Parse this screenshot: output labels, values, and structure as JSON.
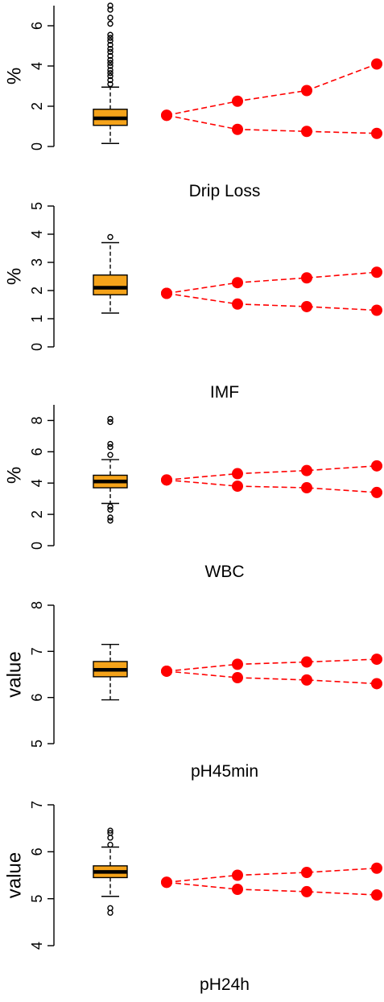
{
  "chart_data": [
    {
      "type": "box+line",
      "title": "Drip Loss",
      "ylabel": "%",
      "ylim": [
        0,
        7
      ],
      "yticks": [
        0,
        2,
        4,
        6
      ],
      "box": {
        "min": 0.15,
        "q1": 1.05,
        "median": 1.4,
        "q3": 1.85,
        "max": 2.95,
        "outliers": [
          3.1,
          3.3,
          3.5,
          3.65,
          3.8,
          4.0,
          4.15,
          4.3,
          4.5,
          4.7,
          4.85,
          5.05,
          5.25,
          5.4,
          5.55,
          6.1,
          6.4,
          6.8,
          7.0
        ]
      },
      "lines": [
        {
          "x": [
            1,
            2,
            3,
            4
          ],
          "y": [
            1.55,
            2.25,
            2.78,
            4.1
          ]
        },
        {
          "x": [
            1,
            2,
            3,
            4
          ],
          "y": [
            1.55,
            0.85,
            0.75,
            0.65
          ]
        }
      ]
    },
    {
      "type": "box+line",
      "title": "IMF",
      "ylabel": "%",
      "ylim": [
        0,
        5
      ],
      "yticks": [
        0,
        1,
        2,
        3,
        4,
        5
      ],
      "box": {
        "min": 1.2,
        "q1": 1.85,
        "median": 2.1,
        "q3": 2.55,
        "max": 3.7,
        "outliers": [
          3.9
        ]
      },
      "lines": [
        {
          "x": [
            1,
            2,
            3,
            4
          ],
          "y": [
            1.9,
            2.28,
            2.45,
            2.65
          ]
        },
        {
          "x": [
            1,
            2,
            3,
            4
          ],
          "y": [
            1.9,
            1.52,
            1.43,
            1.3
          ]
        }
      ]
    },
    {
      "type": "box+line",
      "title": "WBC",
      "ylabel": "%",
      "ylim": [
        0,
        9
      ],
      "yticks": [
        0,
        2,
        4,
        6,
        8
      ],
      "box": {
        "min": 2.7,
        "q1": 3.7,
        "median": 4.1,
        "q3": 4.5,
        "max": 5.5,
        "outliers": [
          1.6,
          1.8,
          2.3,
          2.5,
          5.8,
          6.3,
          6.5,
          7.9,
          8.1
        ]
      },
      "lines": [
        {
          "x": [
            1,
            2,
            3,
            4
          ],
          "y": [
            4.2,
            4.6,
            4.8,
            5.1
          ]
        },
        {
          "x": [
            1,
            2,
            3,
            4
          ],
          "y": [
            4.2,
            3.8,
            3.7,
            3.4
          ]
        }
      ]
    },
    {
      "type": "box+line",
      "title": "pH45min",
      "ylabel": "value",
      "ylim": [
        5,
        8
      ],
      "yticks": [
        5,
        6,
        7,
        8
      ],
      "box": {
        "min": 5.95,
        "q1": 6.45,
        "median": 6.6,
        "q3": 6.78,
        "max": 7.15,
        "outliers": []
      },
      "lines": [
        {
          "x": [
            1,
            2,
            3,
            4
          ],
          "y": [
            6.57,
            6.72,
            6.77,
            6.83
          ]
        },
        {
          "x": [
            1,
            2,
            3,
            4
          ],
          "y": [
            6.57,
            6.43,
            6.38,
            6.3
          ]
        }
      ]
    },
    {
      "type": "box+line",
      "title": "pH24h",
      "ylabel": "value",
      "ylim": [
        4,
        7
      ],
      "yticks": [
        4,
        5,
        6,
        7
      ],
      "box": {
        "min": 5.05,
        "q1": 5.45,
        "median": 5.57,
        "q3": 5.7,
        "max": 6.1,
        "outliers": [
          4.7,
          4.8,
          6.15,
          6.3,
          6.4,
          6.45
        ]
      },
      "lines": [
        {
          "x": [
            1,
            2,
            3,
            4
          ],
          "y": [
            5.35,
            5.5,
            5.56,
            5.65
          ]
        },
        {
          "x": [
            1,
            2,
            3,
            4
          ],
          "y": [
            5.35,
            5.2,
            5.15,
            5.08
          ]
        }
      ]
    }
  ],
  "colors": {
    "box_fill": "#f5a31a",
    "trend": "#ff0000"
  }
}
